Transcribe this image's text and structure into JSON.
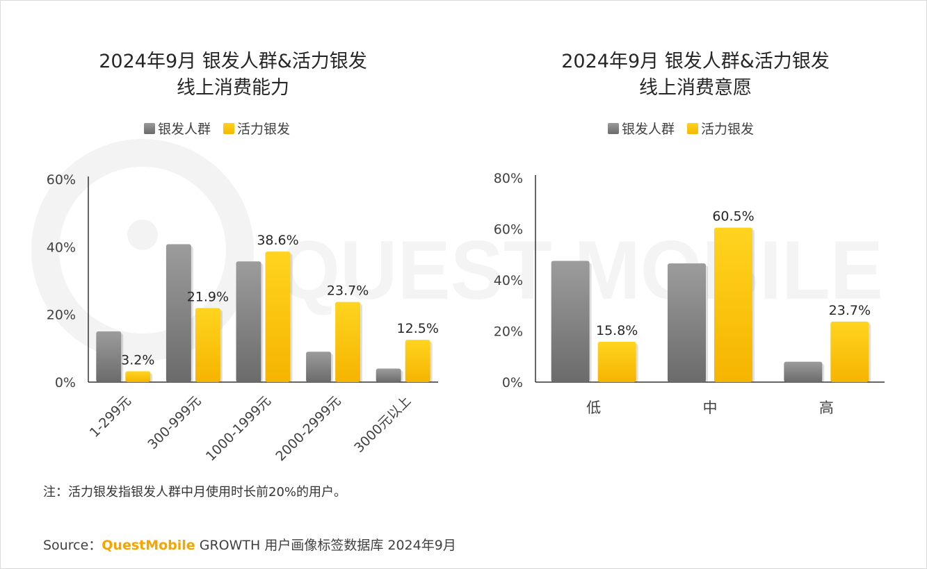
{
  "watermark_text": "QUEST MOBILE",
  "legend": {
    "series1": "银发人群",
    "series2": "活力银发",
    "colors": {
      "series1": "#7d7d7d",
      "series2": "#fcc20a"
    }
  },
  "chart_data": [
    {
      "type": "bar",
      "title_line1": "2024年9月 银发人群&活力银发",
      "title_line2": "线上消费能力",
      "categories": [
        "1-299元",
        "300-999元",
        "1000-1999元",
        "2000-2999元",
        "3000元以上"
      ],
      "series": [
        {
          "name": "银发人群",
          "values": [
            15,
            40.8,
            35.7,
            9,
            4
          ]
        },
        {
          "name": "活力银发",
          "values": [
            3.2,
            21.9,
            38.6,
            23.7,
            12.5
          ],
          "labels": [
            "3.2%",
            "21.9%",
            "38.6%",
            "23.7%",
            "12.5%"
          ]
        }
      ],
      "yticks": [
        "0%",
        "20%",
        "40%",
        "60%"
      ],
      "ylim": [
        0,
        60
      ],
      "xlabel": "",
      "ylabel": "",
      "legend_position": "top-center"
    },
    {
      "type": "bar",
      "title_line1": "2024年9月 银发人群&活力银发",
      "title_line2": "线上消费意愿",
      "categories": [
        "低",
        "中",
        "高"
      ],
      "series": [
        {
          "name": "银发人群",
          "values": [
            47.5,
            46.5,
            8
          ]
        },
        {
          "name": "活力银发",
          "values": [
            15.8,
            60.5,
            23.7
          ],
          "labels": [
            "15.8%",
            "60.5%",
            "23.7%"
          ]
        }
      ],
      "yticks": [
        "0%",
        "20%",
        "40%",
        "60%",
        "80%"
      ],
      "ylim": [
        0,
        80
      ],
      "xlabel": "",
      "ylabel": "",
      "legend_position": "top-center"
    }
  ],
  "note": "注：活力银发指银发人群中月使用时长前20%的用户。",
  "source": {
    "prefix": "Source：",
    "brand": "QuestMobile",
    "rest": " GROWTH 用户画像标签数据库 2024年9月"
  }
}
